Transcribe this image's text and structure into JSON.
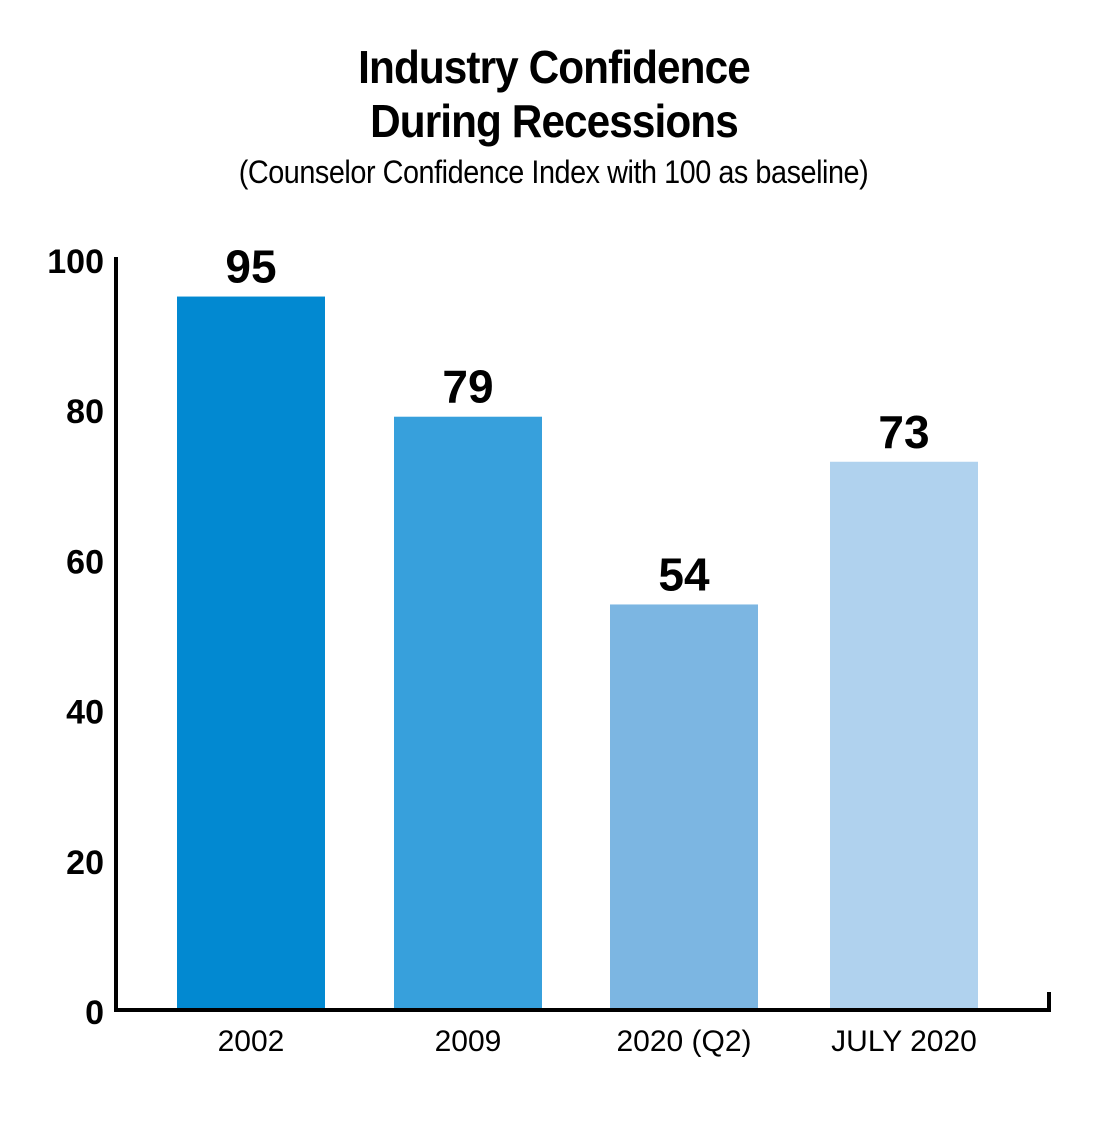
{
  "chart_data": {
    "type": "bar",
    "title": "Industry Confidence During Recessions",
    "subtitle": "(Counselor Confidence Index with 100 as baseline)",
    "xlabel": "",
    "ylabel": "",
    "categories": [
      "2002",
      "2009",
      "2020 (Q2)",
      "JULY 2020"
    ],
    "values": [
      95,
      79,
      54,
      73
    ],
    "data_labels": [
      "95",
      "79",
      "54",
      "73"
    ],
    "bar_colors": [
      "#0289d1",
      "#37a0dc",
      "#7cb6e2",
      "#b0d2ee"
    ],
    "ylim": [
      0,
      100
    ],
    "yticks": [
      0,
      20,
      40,
      60,
      80,
      100
    ],
    "ytick_labels": [
      "0",
      "20",
      "40",
      "60",
      "80",
      "100"
    ],
    "grid": false,
    "legend": "none"
  }
}
